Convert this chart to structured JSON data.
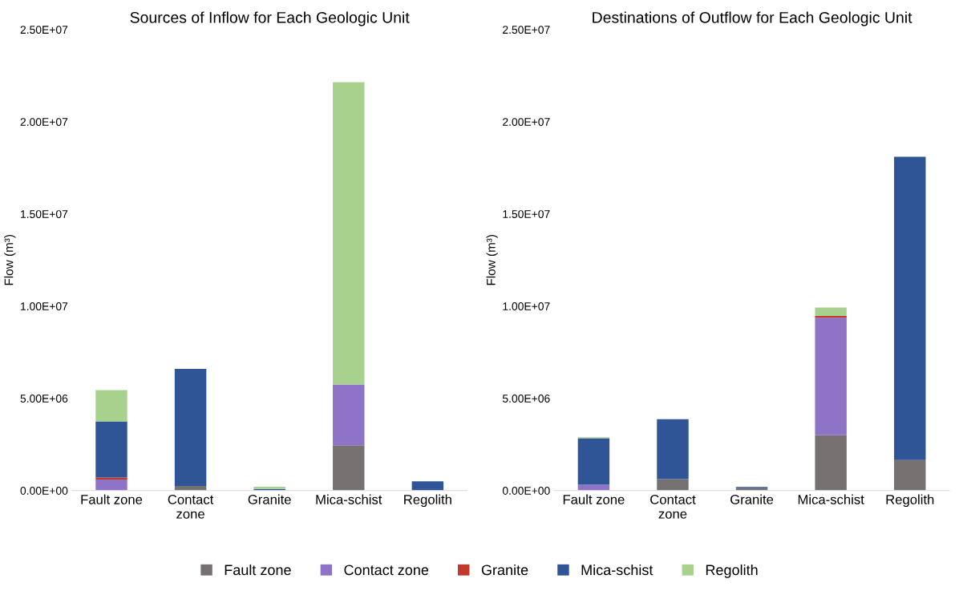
{
  "chart_data": [
    {
      "type": "bar",
      "stacked": true,
      "title": "Sources of Inflow for Each Geologic Unit",
      "ylabel": "Flow (m³)",
      "categories": [
        "Fault zone",
        "Contact\nzone",
        "Granite",
        "Mica-schist",
        "Regolith"
      ],
      "ylim": [
        0,
        25000000
      ],
      "yticks": [
        {
          "value": 0,
          "label": "0.00E+00"
        },
        {
          "value": 5000000,
          "label": "5.00E+06"
        },
        {
          "value": 10000000,
          "label": "1.00E+07"
        },
        {
          "value": 15000000,
          "label": "1.50E+07"
        },
        {
          "value": 20000000,
          "label": "2.00E+07"
        },
        {
          "value": 25000000,
          "label": "2.50E+07"
        }
      ],
      "legend": "bottom",
      "series": [
        {
          "name": "Fault zone",
          "color": "#767171",
          "values": [
            null,
            250000,
            null,
            2450000,
            null
          ]
        },
        {
          "name": "Contact zone",
          "color": "#8e73c6",
          "values": [
            600000,
            null,
            null,
            3300000,
            null
          ]
        },
        {
          "name": "Granite",
          "color": "#c0392b",
          "values": [
            100000,
            null,
            null,
            null,
            null
          ]
        },
        {
          "name": "Mica-schist",
          "color": "#2f5597",
          "values": [
            3050000,
            6350000,
            80000,
            null,
            500000
          ]
        },
        {
          "name": "Regolith",
          "color": "#a9d18e",
          "values": [
            1700000,
            null,
            120000,
            16400000,
            null
          ]
        }
      ]
    },
    {
      "type": "bar",
      "stacked": true,
      "title": "Destinations of Outflow for Each Geologic Unit",
      "ylabel": "Flow (m³)",
      "categories": [
        "Fault zone",
        "Contact\nzone",
        "Granite",
        "Mica-schist",
        "Regolith"
      ],
      "ylim": [
        0,
        25000000
      ],
      "yticks": [
        {
          "value": 0,
          "label": "0.00E+00"
        },
        {
          "value": 5000000,
          "label": "5.00E+06"
        },
        {
          "value": 10000000,
          "label": "1.00E+07"
        },
        {
          "value": 15000000,
          "label": "1.50E+07"
        },
        {
          "value": 20000000,
          "label": "2.00E+07"
        },
        {
          "value": 25000000,
          "label": "2.50E+07"
        }
      ],
      "series": [
        {
          "color": "#767171",
          "values": [
            null,
            620000,
            130000,
            3000000,
            1650000
          ]
        },
        {
          "color": "#8e73c6",
          "values": [
            310000,
            null,
            null,
            6370000,
            null
          ]
        },
        {
          "color": "#c0392b",
          "values": [
            null,
            null,
            null,
            100000,
            null
          ]
        },
        {
          "color": "#2f5597",
          "values": [
            2530000,
            3250000,
            60000,
            null,
            16450000
          ]
        },
        {
          "color": "#a9d18e",
          "values": [
            50000,
            null,
            null,
            450000,
            null
          ]
        }
      ]
    }
  ]
}
